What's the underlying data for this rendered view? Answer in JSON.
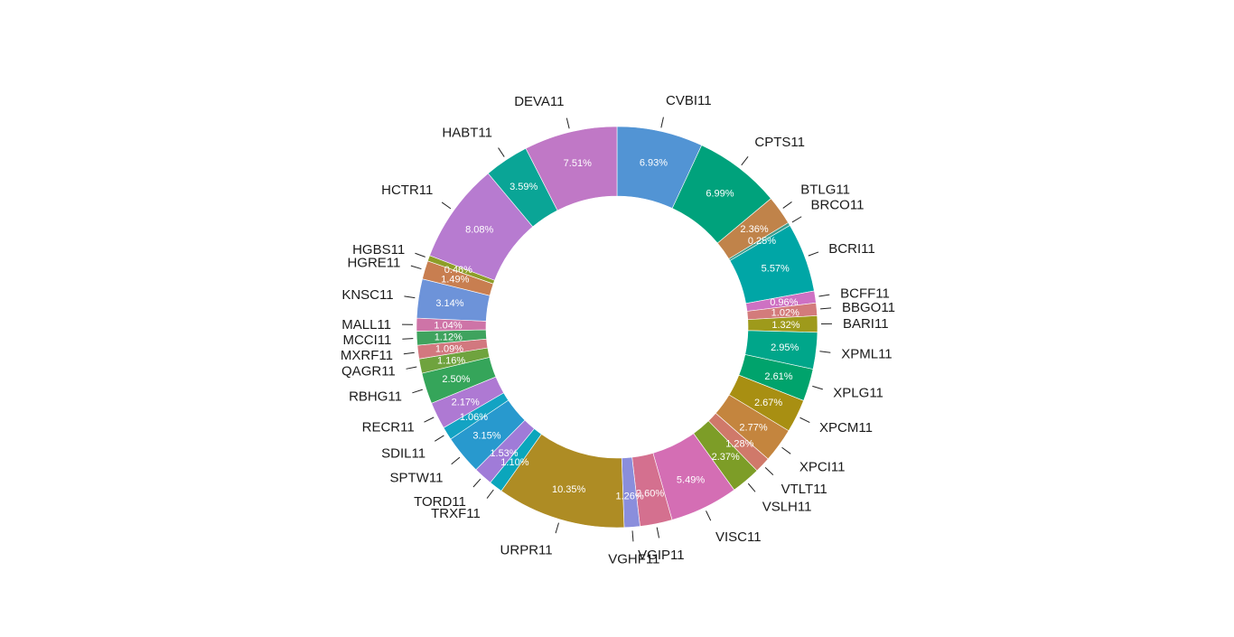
{
  "chart_data": {
    "type": "pie",
    "subtype": "donut",
    "start_angle_deg": 0,
    "direction": "clockwise",
    "slices": [
      {
        "label": "CVBI11",
        "value": 6.93,
        "pct_label": "6.93%",
        "color": "#5294D4"
      },
      {
        "label": "CPTS11",
        "value": 6.99,
        "pct_label": "6.99%",
        "color": "#00A27C"
      },
      {
        "label": "BTLG11",
        "value": 2.36,
        "pct_label": "2.36%",
        "color": "#C0834A"
      },
      {
        "label": "BRCO11",
        "value": 0.25,
        "pct_label": "0.25%",
        "color": "#3E9E8E"
      },
      {
        "label": "BCRI11",
        "value": 5.57,
        "pct_label": "5.57%",
        "color": "#00A6A6"
      },
      {
        "label": "BCFF11",
        "value": 0.96,
        "pct_label": "0.96%",
        "color": "#CE71C3"
      },
      {
        "label": "BBGO11",
        "value": 1.02,
        "pct_label": "1.02%",
        "color": "#D37B7B"
      },
      {
        "label": "BARI11",
        "value": 1.32,
        "pct_label": "1.32%",
        "color": "#9E9A1B"
      },
      {
        "label": "XPML11",
        "value": 2.95,
        "pct_label": "2.95%",
        "color": "#00A68A"
      },
      {
        "label": "XPLG11",
        "value": 2.61,
        "pct_label": "2.61%",
        "color": "#00A36C"
      },
      {
        "label": "XPCM11",
        "value": 2.67,
        "pct_label": "2.67%",
        "color": "#A88F12"
      },
      {
        "label": "XPCI11",
        "value": 2.77,
        "pct_label": "2.77%",
        "color": "#C4853E"
      },
      {
        "label": "VTLT11",
        "value": 1.28,
        "pct_label": "1.28%",
        "color": "#D0796A"
      },
      {
        "label": "VSLH11",
        "value": 2.37,
        "pct_label": "2.37%",
        "color": "#7D9D27"
      },
      {
        "label": "VISC11",
        "value": 5.49,
        "pct_label": "5.49%",
        "color": "#D46EB4"
      },
      {
        "label": "VGIP11",
        "value": 2.6,
        "pct_label": "2.60%",
        "color": "#D4708F"
      },
      {
        "label": "VGHF11",
        "value": 1.26,
        "pct_label": "1.26%",
        "color": "#8A8EDC"
      },
      {
        "label": "URPR11",
        "value": 10.35,
        "pct_label": "10.35%",
        "color": "#AE8C24"
      },
      {
        "label": "TRXF11",
        "value": 1.1,
        "pct_label": "1.10%",
        "color": "#0BA6BC"
      },
      {
        "label": "TORD11",
        "value": 1.53,
        "pct_label": "1.53%",
        "color": "#A07BD8"
      },
      {
        "label": "SPTW11",
        "value": 3.15,
        "pct_label": "3.15%",
        "color": "#2899CE"
      },
      {
        "label": "SDIL11",
        "value": 1.06,
        "pct_label": "1.06%",
        "color": "#13A3C3"
      },
      {
        "label": "RECR11",
        "value": 2.17,
        "pct_label": "2.17%",
        "color": "#AE79D3"
      },
      {
        "label": "RBHG11",
        "value": 2.5,
        "pct_label": "2.50%",
        "color": "#35A55A"
      },
      {
        "label": "QAGR11",
        "value": 1.16,
        "pct_label": "1.16%",
        "color": "#6FA33E"
      },
      {
        "label": "MXRF11",
        "value": 1.09,
        "pct_label": "1.09%",
        "color": "#D2787F"
      },
      {
        "label": "MCCI11",
        "value": 1.12,
        "pct_label": "1.12%",
        "color": "#3FA35E"
      },
      {
        "label": "MALL11",
        "value": 1.04,
        "pct_label": "1.04%",
        "color": "#CE74A7"
      },
      {
        "label": "KNSC11",
        "value": 3.14,
        "pct_label": "3.14%",
        "color": "#6D93D9"
      },
      {
        "label": "HGRE11",
        "value": 1.49,
        "pct_label": "1.49%",
        "color": "#C87E50"
      },
      {
        "label": "HGBS11",
        "value": 0.46,
        "pct_label": "0.46%",
        "color": "#8D9E28"
      },
      {
        "label": "HCTR11",
        "value": 8.08,
        "pct_label": "8.08%",
        "color": "#B77BD0"
      },
      {
        "label": "HABT11",
        "value": 3.59,
        "pct_label": "3.59%",
        "color": "#0AA596"
      },
      {
        "label": "DEVA11",
        "value": 7.51,
        "pct_label": "7.51%",
        "color": "#C078C6"
      }
    ]
  }
}
